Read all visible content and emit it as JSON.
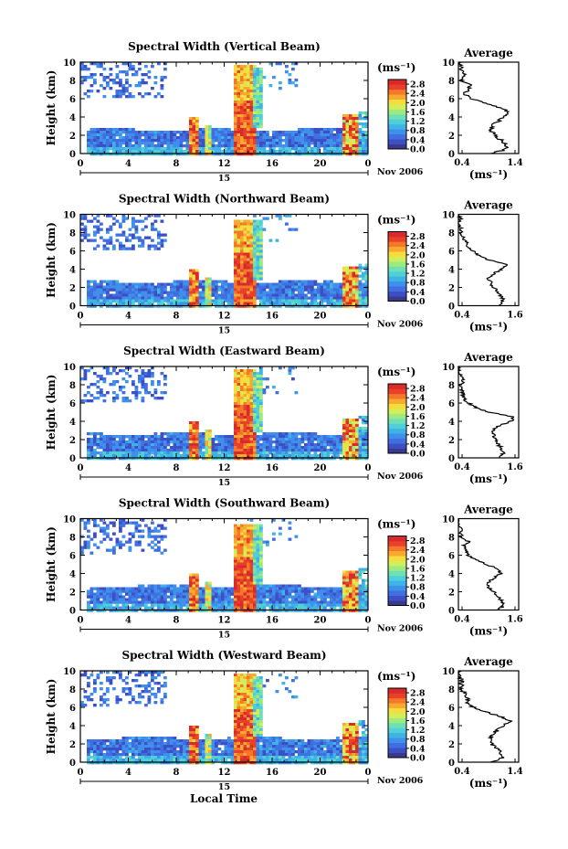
{
  "figure": {
    "x_label": "Local Time",
    "date_label": "Nov 2006",
    "day_label": "15",
    "units": "(ms⁻¹)",
    "palette": [
      "#3a3a8c",
      "#3d4fc4",
      "#3f6fe0",
      "#3f90ea",
      "#3fb3e6",
      "#4fd0d8",
      "#6fe0b4",
      "#9eea80",
      "#d2ee58",
      "#f6dc3c",
      "#f8aa30",
      "#f47828",
      "#e8402a",
      "#d82a2a"
    ]
  },
  "chart_data": [
    {
      "type": "heatmap",
      "title": "Spectral Width (Vertical Beam)",
      "xlabel": "",
      "ylabel": "Height (km)",
      "x_ticks": [
        "0",
        "4",
        "8",
        "12",
        "16",
        "20",
        "0"
      ],
      "y_ticks": [
        "0",
        "2",
        "4",
        "6",
        "8",
        "10"
      ],
      "xlim": [
        0,
        24
      ],
      "ylim": [
        0,
        10
      ],
      "colorbar": {
        "ticks": [
          "0.0",
          "0.4",
          "0.8",
          "1.2",
          "1.6",
          "2.0",
          "2.4",
          "2.8"
        ],
        "range": [
          0.0,
          3.0
        ]
      },
      "profile": {
        "title": "Average",
        "xlabel": "(ms⁻¹)",
        "x_ticks": [
          "0.4",
          "1.4"
        ],
        "xlim": [
          0.4,
          1.4
        ],
        "y_ticks": [
          "0",
          "2",
          "4",
          "6",
          "8",
          "10"
        ],
        "heights": [
          0,
          0.5,
          1,
          1.5,
          2,
          2.5,
          3,
          3.5,
          4,
          4.5,
          5,
          5.5,
          6,
          6.5,
          7,
          7.5,
          8,
          8.5,
          9,
          9.5,
          10
        ],
        "values": [
          0.95,
          1.2,
          1.2,
          1.1,
          1.0,
          0.95,
          0.95,
          1.05,
          1.15,
          1.25,
          1.1,
          0.85,
          0.6,
          0.5,
          0.55,
          0.6,
          0.45,
          0.5,
          0.45,
          0.45,
          0.4
        ]
      }
    },
    {
      "type": "heatmap",
      "title": "Spectral Width (Northward Beam)",
      "xlabel": "",
      "ylabel": "Height (km)",
      "x_ticks": [
        "0",
        "4",
        "8",
        "12",
        "16",
        "20",
        "0"
      ],
      "y_ticks": [
        "0",
        "2",
        "4",
        "6",
        "8",
        "10"
      ],
      "xlim": [
        0,
        24
      ],
      "ylim": [
        0,
        10
      ],
      "colorbar": {
        "ticks": [
          "0.0",
          "0.4",
          "0.8",
          "1.2",
          "1.6",
          "2.0",
          "2.4",
          "2.8"
        ],
        "range": [
          0.0,
          3.0
        ]
      },
      "profile": {
        "title": "Average",
        "xlabel": "(ms⁻¹)",
        "x_ticks": [
          "0.4",
          "1.6"
        ],
        "xlim": [
          0.4,
          1.6
        ],
        "y_ticks": [
          "0",
          "2",
          "4",
          "6",
          "8",
          "10"
        ],
        "heights": [
          0,
          0.5,
          1,
          1.5,
          2,
          2.5,
          3,
          3.5,
          4,
          4.5,
          5,
          5.5,
          6,
          6.5,
          7,
          7.5,
          8,
          8.5,
          9,
          9.5,
          10
        ],
        "values": [
          1.2,
          1.3,
          1.25,
          1.2,
          1.1,
          1.05,
          1.0,
          1.1,
          1.25,
          1.35,
          1.0,
          0.8,
          0.7,
          0.6,
          0.55,
          0.5,
          0.45,
          0.45,
          0.4,
          0.45,
          0.4
        ]
      }
    },
    {
      "type": "heatmap",
      "title": "Spectral Width (Eastward Beam)",
      "xlabel": "",
      "ylabel": "Height (km)",
      "x_ticks": [
        "0",
        "4",
        "8",
        "12",
        "16",
        "20",
        "0"
      ],
      "y_ticks": [
        "0",
        "2",
        "4",
        "6",
        "8",
        "10"
      ],
      "xlim": [
        0,
        24
      ],
      "ylim": [
        0,
        10
      ],
      "colorbar": {
        "ticks": [
          "0.0",
          "0.4",
          "0.8",
          "1.2",
          "1.6",
          "2.0",
          "2.4",
          "2.8"
        ],
        "range": [
          0.0,
          3.0
        ]
      },
      "profile": {
        "title": "Average",
        "xlabel": "(ms⁻¹)",
        "x_ticks": [
          "0.4",
          "1.6"
        ],
        "xlim": [
          0.4,
          1.6
        ],
        "y_ticks": [
          "0",
          "2",
          "4",
          "6",
          "8",
          "10"
        ],
        "heights": [
          0,
          0.5,
          1,
          1.5,
          2,
          2.5,
          3,
          3.5,
          4,
          4.5,
          5,
          5.5,
          6,
          6.5,
          7,
          7.5,
          8,
          8.5,
          9,
          9.5,
          10
        ],
        "values": [
          1.2,
          1.3,
          1.25,
          1.2,
          1.15,
          1.1,
          1.1,
          1.2,
          1.45,
          1.5,
          1.0,
          0.75,
          0.6,
          0.5,
          0.5,
          0.45,
          0.45,
          0.5,
          0.45,
          0.4,
          0.4
        ]
      }
    },
    {
      "type": "heatmap",
      "title": "Spectral Width (Southward Beam)",
      "xlabel": "",
      "ylabel": "Height (km)",
      "x_ticks": [
        "0",
        "4",
        "8",
        "12",
        "16",
        "20",
        "0"
      ],
      "y_ticks": [
        "0",
        "2",
        "4",
        "6",
        "8",
        "10"
      ],
      "xlim": [
        0,
        24
      ],
      "ylim": [
        0,
        10
      ],
      "colorbar": {
        "ticks": [
          "0.0",
          "0.4",
          "0.8",
          "1.2",
          "1.6",
          "2.0",
          "2.4",
          "2.8"
        ],
        "range": [
          0.0,
          3.0
        ]
      },
      "profile": {
        "title": "Average",
        "xlabel": "(ms⁻¹)",
        "x_ticks": [
          "0.4",
          "1.6"
        ],
        "xlim": [
          0.4,
          1.6
        ],
        "y_ticks": [
          "0",
          "2",
          "4",
          "6",
          "8",
          "10"
        ],
        "heights": [
          0,
          0.5,
          1,
          1.5,
          2,
          2.5,
          3,
          3.5,
          4,
          4.5,
          5,
          5.5,
          6,
          6.5,
          7,
          7.5,
          8,
          8.5,
          9,
          9.5,
          10
        ],
        "values": [
          1.2,
          1.3,
          1.25,
          1.2,
          1.1,
          1.0,
          1.0,
          1.1,
          1.25,
          1.2,
          0.95,
          0.75,
          0.6,
          0.55,
          0.5,
          0.6,
          0.45,
          0.45,
          0.45,
          0.4,
          0.4
        ]
      }
    },
    {
      "type": "heatmap",
      "title": "Spectral Width (Westward Beam)",
      "xlabel": "Local Time",
      "ylabel": "Height (km)",
      "x_ticks": [
        "0",
        "4",
        "8",
        "12",
        "16",
        "20",
        "0"
      ],
      "y_ticks": [
        "0",
        "2",
        "4",
        "6",
        "8",
        "10"
      ],
      "xlim": [
        0,
        24
      ],
      "ylim": [
        0,
        10
      ],
      "colorbar": {
        "ticks": [
          "0.0",
          "0.4",
          "0.8",
          "1.2",
          "1.6",
          "2.0",
          "2.4",
          "2.8"
        ],
        "range": [
          0.0,
          3.0
        ]
      },
      "profile": {
        "title": "Average",
        "xlabel": "(ms⁻¹)",
        "x_ticks": [
          "0.4",
          "1.4"
        ],
        "xlim": [
          0.4,
          1.4
        ],
        "y_ticks": [
          "0",
          "2",
          "4",
          "6",
          "8",
          "10"
        ],
        "heights": [
          0,
          0.5,
          1,
          1.5,
          2,
          2.5,
          3,
          3.5,
          4,
          4.5,
          5,
          5.5,
          6,
          6.5,
          7,
          7.5,
          8,
          8.5,
          9,
          9.5,
          10
        ],
        "values": [
          0.95,
          1.15,
          1.1,
          1.05,
          0.95,
          0.95,
          0.95,
          1.05,
          1.15,
          1.25,
          1.1,
          0.85,
          0.65,
          0.55,
          0.55,
          0.5,
          0.45,
          0.45,
          0.45,
          0.4,
          0.4
        ]
      }
    }
  ]
}
